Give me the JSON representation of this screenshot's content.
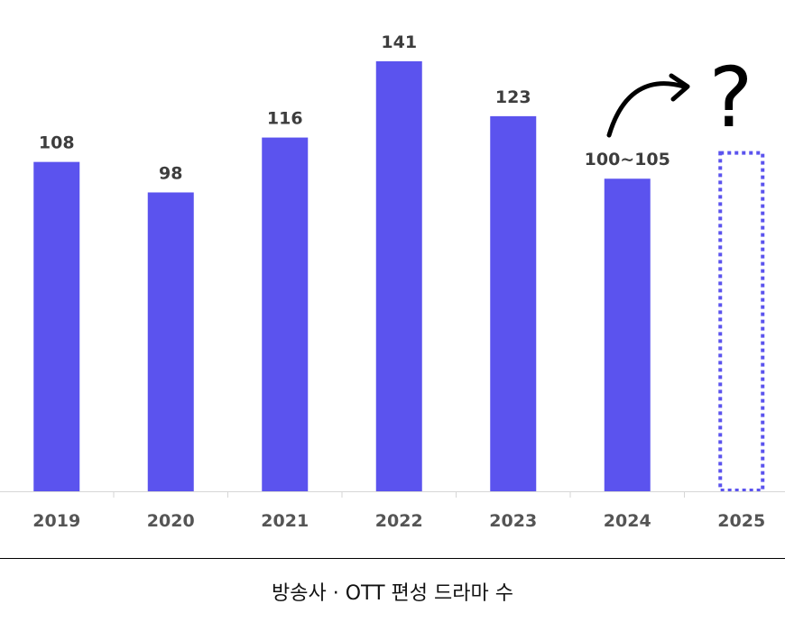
{
  "chart_data": {
    "type": "bar",
    "categories": [
      "2019",
      "2020",
      "2021",
      "2022",
      "2023",
      "2024",
      "2025"
    ],
    "values": [
      108,
      98,
      116,
      141,
      123,
      102.5,
      null
    ],
    "value_labels": [
      "108",
      "98",
      "116",
      "141",
      "123",
      "100~105",
      ""
    ],
    "projected_category": "2025",
    "projected_marker": "?",
    "ylim": [
      0,
      150
    ],
    "grid": false,
    "colors": {
      "bar": "#5b53ee",
      "projected_outline": "#5b53ee"
    }
  },
  "caption": "방송사 · OTT 편성 드라마 수"
}
